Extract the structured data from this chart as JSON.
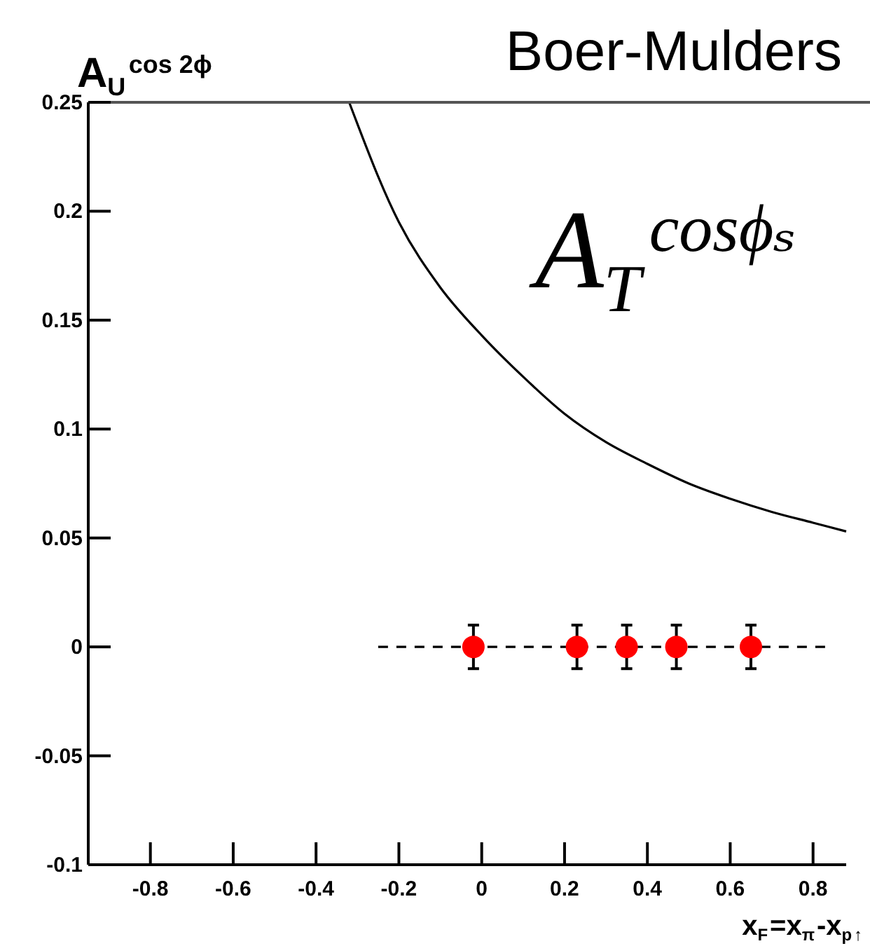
{
  "chart_data": {
    "type": "scatter",
    "title": "Boer-Mulders",
    "ylabel": "A$_{U}$$^{cos 2ϕ}$",
    "xlabel": "x$_{F}$=x$_{π}$-x$_{p↑}$",
    "annotations": [
      "A$_{T}$$^{cosϕₛ}$"
    ],
    "xlim": [
      -0.95,
      0.88
    ],
    "ylim": [
      -0.1,
      0.25
    ],
    "xticks": [
      -0.8,
      -0.6,
      -0.4,
      -0.2,
      0,
      0.2,
      0.4,
      0.6,
      0.8
    ],
    "yticks": [
      -0.1,
      -0.05,
      0,
      0.05,
      0.1,
      0.15,
      0.2,
      0.25
    ],
    "grid": false,
    "series": [
      {
        "type": "line",
        "color": "#000000",
        "line_style": "solid",
        "marker": "none",
        "x": [
          -0.32,
          -0.2,
          -0.1,
          0,
          0.1,
          0.2,
          0.3,
          0.4,
          0.5,
          0.6,
          0.7,
          0.8,
          0.88
        ],
        "values": [
          0.25,
          0.195,
          0.165,
          0.143,
          0.124,
          0.107,
          0.094,
          0.084,
          0.075,
          0.068,
          0.062,
          0.057,
          0.053
        ]
      },
      {
        "type": "line",
        "color": "#000000",
        "line_style": "dashed",
        "marker": "none",
        "x": [
          -0.25,
          0.83
        ],
        "values": [
          0,
          0
        ]
      },
      {
        "color": "#ff0000",
        "marker": "circle",
        "x": [
          -0.02,
          0.23,
          0.35,
          0.47,
          0.65
        ],
        "values": [
          0,
          0,
          0,
          0,
          0
        ],
        "errors": [
          0.01,
          0.01,
          0.01,
          0.01,
          0.01
        ]
      }
    ]
  }
}
